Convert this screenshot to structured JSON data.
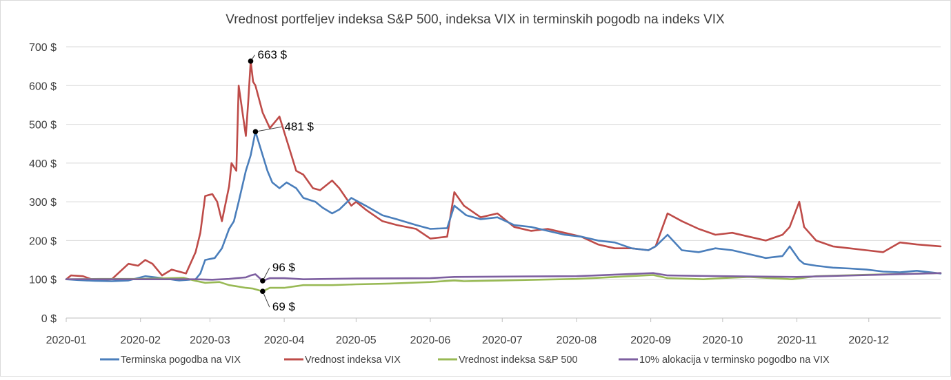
{
  "chart_data": {
    "type": "line",
    "title": "Vrednost portfeljev indeksa S&P 500, indeksa VIX in terminskih pogodb na indeks VIX",
    "xlabel": "",
    "ylabel": "",
    "x_domain": [
      "2020-01-01",
      "2020-12-31"
    ],
    "ylim": [
      0,
      700
    ],
    "y_ticks": [
      0,
      100,
      200,
      300,
      400,
      500,
      600,
      700
    ],
    "y_tick_labels": [
      "0 $",
      "100 $",
      "200 $",
      "300 $",
      "400 $",
      "500 $",
      "600 $",
      "700 $"
    ],
    "x_ticks": [
      "2020-01-01",
      "2020-02-01",
      "2020-03-01",
      "2020-04-01",
      "2020-05-01",
      "2020-06-01",
      "2020-07-01",
      "2020-08-01",
      "2020-09-01",
      "2020-10-01",
      "2020-11-01",
      "2020-12-01"
    ],
    "x_tick_labels": [
      "2020-01",
      "2020-02",
      "2020-03",
      "2020-04",
      "2020-05",
      "2020-06",
      "2020-07",
      "2020-08",
      "2020-09",
      "2020-10",
      "2020-11",
      "2020-12"
    ],
    "grid": true,
    "legend_position": "bottom",
    "series": [
      {
        "name": "Terminska pogodba na VIX",
        "color": "#4a7ebb",
        "x": [
          "2020-01-01",
          "2020-01-06",
          "2020-01-13",
          "2020-01-20",
          "2020-01-27",
          "2020-02-03",
          "2020-02-10",
          "2020-02-17",
          "2020-02-24",
          "2020-02-26",
          "2020-02-28",
          "2020-03-03",
          "2020-03-06",
          "2020-03-09",
          "2020-03-11",
          "2020-03-13",
          "2020-03-16",
          "2020-03-18",
          "2020-03-20",
          "2020-03-23",
          "2020-03-25",
          "2020-03-27",
          "2020-03-30",
          "2020-04-02",
          "2020-04-06",
          "2020-04-09",
          "2020-04-14",
          "2020-04-17",
          "2020-04-21",
          "2020-04-24",
          "2020-04-29",
          "2020-05-05",
          "2020-05-12",
          "2020-05-18",
          "2020-05-26",
          "2020-06-01",
          "2020-06-08",
          "2020-06-11",
          "2020-06-16",
          "2020-06-22",
          "2020-06-29",
          "2020-07-06",
          "2020-07-13",
          "2020-07-20",
          "2020-07-27",
          "2020-08-03",
          "2020-08-10",
          "2020-08-17",
          "2020-08-24",
          "2020-08-31",
          "2020-09-03",
          "2020-09-08",
          "2020-09-14",
          "2020-09-21",
          "2020-09-28",
          "2020-10-05",
          "2020-10-12",
          "2020-10-19",
          "2020-10-26",
          "2020-10-29",
          "2020-11-02",
          "2020-11-04",
          "2020-11-09",
          "2020-11-16",
          "2020-11-23",
          "2020-11-30",
          "2020-12-07",
          "2020-12-14",
          "2020-12-21",
          "2020-12-31"
        ],
        "y": [
          100,
          98,
          96,
          95,
          97,
          108,
          103,
          97,
          100,
          115,
          150,
          155,
          180,
          230,
          250,
          300,
          380,
          420,
          481,
          420,
          380,
          350,
          335,
          350,
          335,
          310,
          300,
          285,
          270,
          280,
          310,
          290,
          265,
          255,
          240,
          230,
          232,
          290,
          265,
          255,
          260,
          240,
          235,
          225,
          215,
          210,
          200,
          195,
          180,
          175,
          185,
          215,
          175,
          170,
          180,
          175,
          165,
          155,
          160,
          185,
          150,
          140,
          135,
          130,
          128,
          125,
          120,
          118,
          122,
          115
        ]
      },
      {
        "name": "Vrednost indeksa VIX",
        "color": "#be4b48",
        "x": [
          "2020-01-01",
          "2020-01-03",
          "2020-01-08",
          "2020-01-13",
          "2020-01-20",
          "2020-01-27",
          "2020-01-31",
          "2020-02-03",
          "2020-02-06",
          "2020-02-10",
          "2020-02-14",
          "2020-02-20",
          "2020-02-24",
          "2020-02-26",
          "2020-02-28",
          "2020-03-02",
          "2020-03-04",
          "2020-03-06",
          "2020-03-09",
          "2020-03-10",
          "2020-03-12",
          "2020-03-13",
          "2020-03-16",
          "2020-03-17",
          "2020-03-18",
          "2020-03-19",
          "2020-03-20",
          "2020-03-23",
          "2020-03-26",
          "2020-03-30",
          "2020-04-01",
          "2020-04-03",
          "2020-04-06",
          "2020-04-09",
          "2020-04-13",
          "2020-04-16",
          "2020-04-21",
          "2020-04-24",
          "2020-04-29",
          "2020-05-01",
          "2020-05-05",
          "2020-05-12",
          "2020-05-18",
          "2020-05-26",
          "2020-06-01",
          "2020-06-08",
          "2020-06-11",
          "2020-06-15",
          "2020-06-22",
          "2020-06-29",
          "2020-07-06",
          "2020-07-13",
          "2020-07-20",
          "2020-07-27",
          "2020-08-03",
          "2020-08-10",
          "2020-08-17",
          "2020-08-24",
          "2020-08-31",
          "2020-09-03",
          "2020-09-08",
          "2020-09-14",
          "2020-09-21",
          "2020-09-28",
          "2020-10-05",
          "2020-10-12",
          "2020-10-19",
          "2020-10-26",
          "2020-10-29",
          "2020-11-02",
          "2020-11-04",
          "2020-11-09",
          "2020-11-16",
          "2020-11-23",
          "2020-11-30",
          "2020-12-07",
          "2020-12-14",
          "2020-12-21",
          "2020-12-31"
        ],
        "y": [
          100,
          110,
          108,
          97,
          100,
          140,
          135,
          150,
          140,
          110,
          125,
          115,
          170,
          220,
          315,
          320,
          300,
          250,
          340,
          400,
          380,
          600,
          470,
          560,
          663,
          610,
          600,
          530,
          490,
          520,
          480,
          440,
          380,
          370,
          335,
          330,
          355,
          335,
          290,
          300,
          280,
          250,
          240,
          230,
          205,
          210,
          325,
          290,
          260,
          270,
          235,
          225,
          230,
          220,
          210,
          190,
          180,
          180,
          175,
          185,
          270,
          250,
          230,
          215,
          220,
          210,
          200,
          215,
          235,
          300,
          235,
          200,
          185,
          180,
          175,
          170,
          195,
          190,
          185
        ]
      },
      {
        "name": "Vrednost indeksa S&P 500",
        "color": "#98b954",
        "x": [
          "2020-01-01",
          "2020-01-15",
          "2020-02-01",
          "2020-02-19",
          "2020-02-24",
          "2020-02-28",
          "2020-03-05",
          "2020-03-09",
          "2020-03-12",
          "2020-03-16",
          "2020-03-19",
          "2020-03-23",
          "2020-03-26",
          "2020-04-01",
          "2020-04-09",
          "2020-04-21",
          "2020-05-01",
          "2020-05-15",
          "2020-06-01",
          "2020-06-11",
          "2020-06-15",
          "2020-07-01",
          "2020-08-01",
          "2020-09-02",
          "2020-09-08",
          "2020-09-23",
          "2020-10-01",
          "2020-10-12",
          "2020-10-30",
          "2020-11-09",
          "2020-12-01",
          "2020-12-31"
        ],
        "y": [
          100,
          101,
          101,
          104,
          96,
          91,
          93,
          85,
          82,
          78,
          76,
          69,
          78,
          78,
          85,
          85,
          87,
          89,
          93,
          97,
          95,
          97,
          101,
          111,
          103,
          100,
          103,
          106,
          100,
          108,
          112,
          116
        ]
      },
      {
        "name": "10% alokacija v terminsko pogodbo na VIX",
        "color": "#7d5fa0",
        "x": [
          "2020-01-01",
          "2020-02-01",
          "2020-02-24",
          "2020-03-02",
          "2020-03-09",
          "2020-03-12",
          "2020-03-16",
          "2020-03-18",
          "2020-03-20",
          "2020-03-23",
          "2020-03-26",
          "2020-04-01",
          "2020-04-09",
          "2020-05-01",
          "2020-06-01",
          "2020-06-11",
          "2020-07-01",
          "2020-08-01",
          "2020-09-02",
          "2020-09-08",
          "2020-10-01",
          "2020-11-01",
          "2020-12-01",
          "2020-12-31"
        ],
        "y": [
          100,
          100,
          100,
          99,
          101,
          103,
          105,
          110,
          113,
          96,
          103,
          103,
          100,
          102,
          103,
          106,
          107,
          108,
          116,
          110,
          108,
          106,
          111,
          116
        ]
      }
    ],
    "annotations": [
      {
        "series": 1,
        "x": "2020-03-18",
        "y": 663,
        "label": "663 $"
      },
      {
        "series": 0,
        "x": "2020-03-20",
        "y": 481,
        "label": "481 $"
      },
      {
        "series": 3,
        "x": "2020-03-23",
        "y": 96,
        "label": "96 $"
      },
      {
        "series": 2,
        "x": "2020-03-23",
        "y": 69,
        "label": "69 $"
      }
    ]
  }
}
